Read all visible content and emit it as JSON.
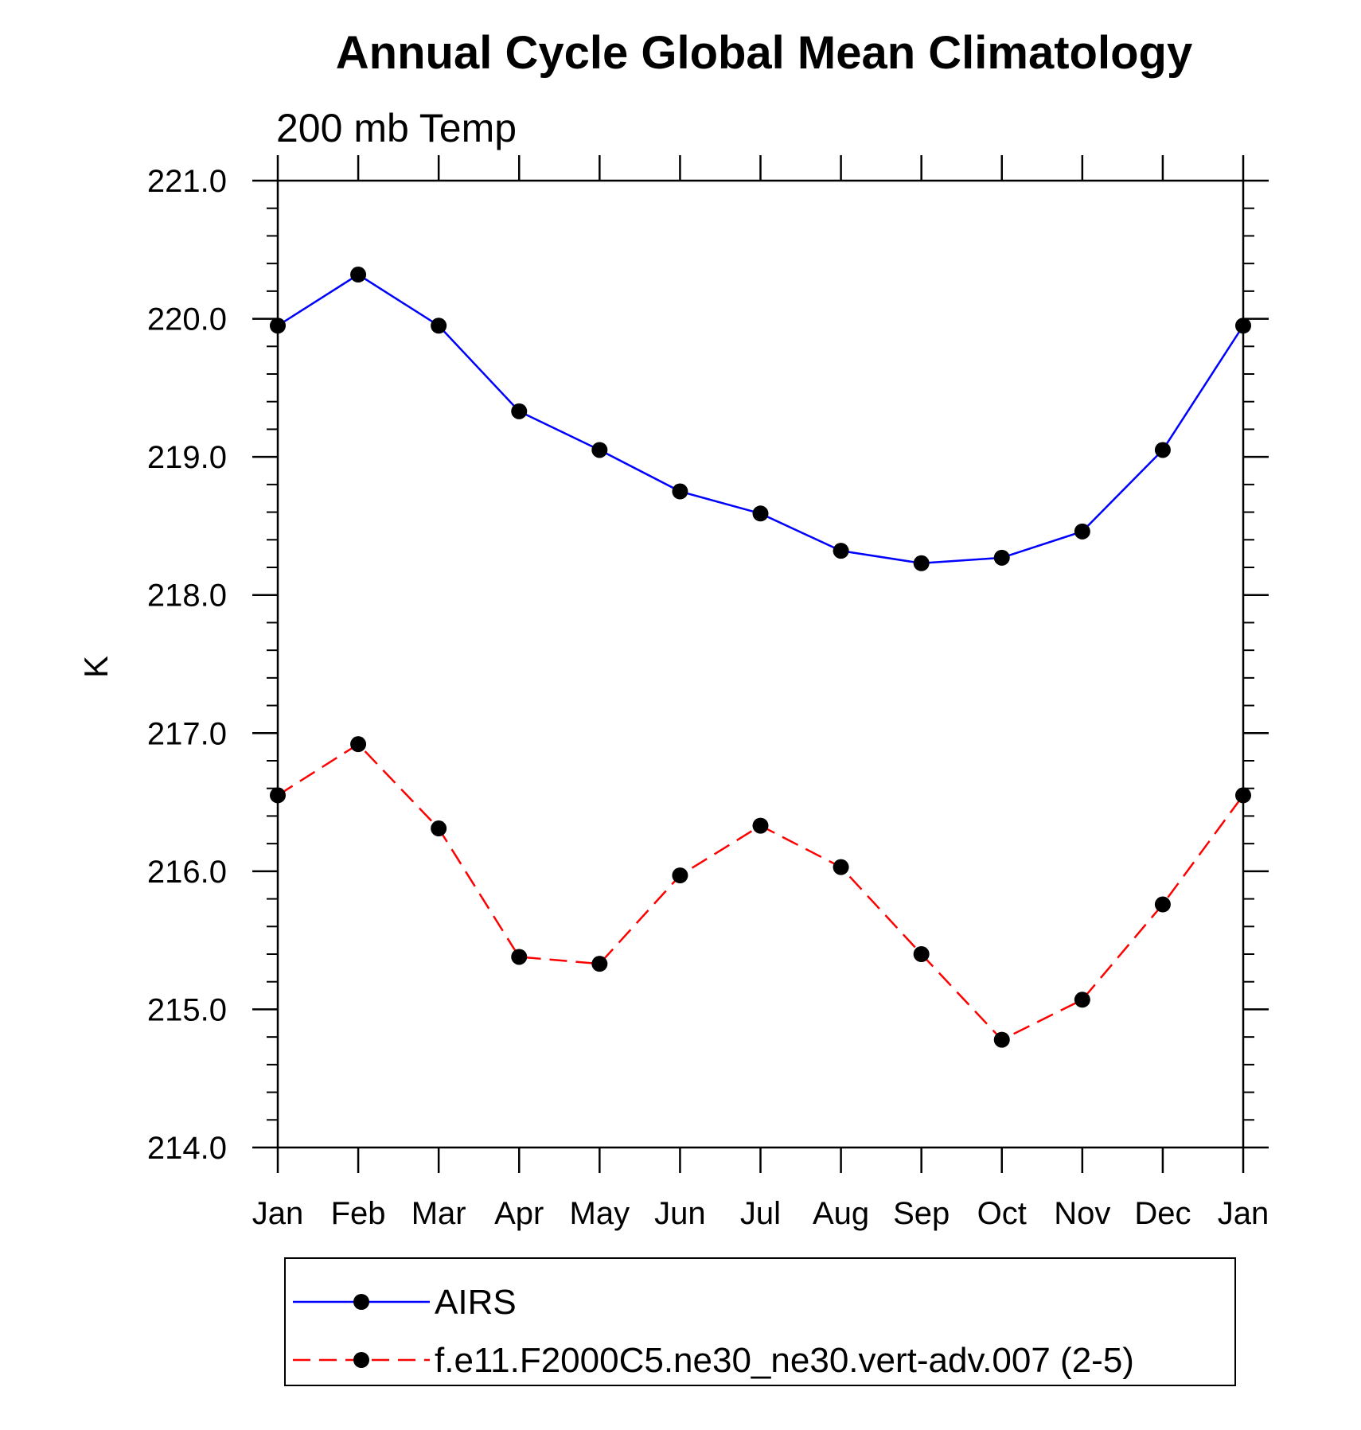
{
  "chart_data": {
    "type": "line",
    "title": "Annual Cycle Global Mean Climatology",
    "subtitle": "200 mb Temp",
    "xlabel": "",
    "ylabel": "K",
    "categories": [
      "Jan",
      "Feb",
      "Mar",
      "Apr",
      "May",
      "Jun",
      "Jul",
      "Aug",
      "Sep",
      "Oct",
      "Nov",
      "Dec",
      "Jan"
    ],
    "ylim": [
      214.0,
      221.0
    ],
    "yticks": [
      "214.0",
      "215.0",
      "216.0",
      "217.0",
      "218.0",
      "219.0",
      "220.0",
      "221.0"
    ],
    "series": [
      {
        "name": "AIRS",
        "color": "#0000ff",
        "dash": "solid",
        "marker": "filled-circle",
        "values": [
          219.95,
          220.32,
          219.95,
          219.33,
          219.05,
          218.75,
          218.59,
          218.32,
          218.23,
          218.27,
          218.46,
          219.05,
          219.95
        ]
      },
      {
        "name": "f.e11.F2000C5.ne30_ne30.vert-adv.007 (2-5)",
        "color": "#ff0000",
        "dash": "dashed",
        "marker": "filled-circle",
        "values": [
          216.55,
          216.92,
          216.31,
          215.38,
          215.33,
          215.97,
          216.33,
          216.03,
          215.4,
          214.78,
          215.07,
          215.76,
          216.55
        ]
      }
    ],
    "legend_position": "bottom",
    "grid": false
  }
}
